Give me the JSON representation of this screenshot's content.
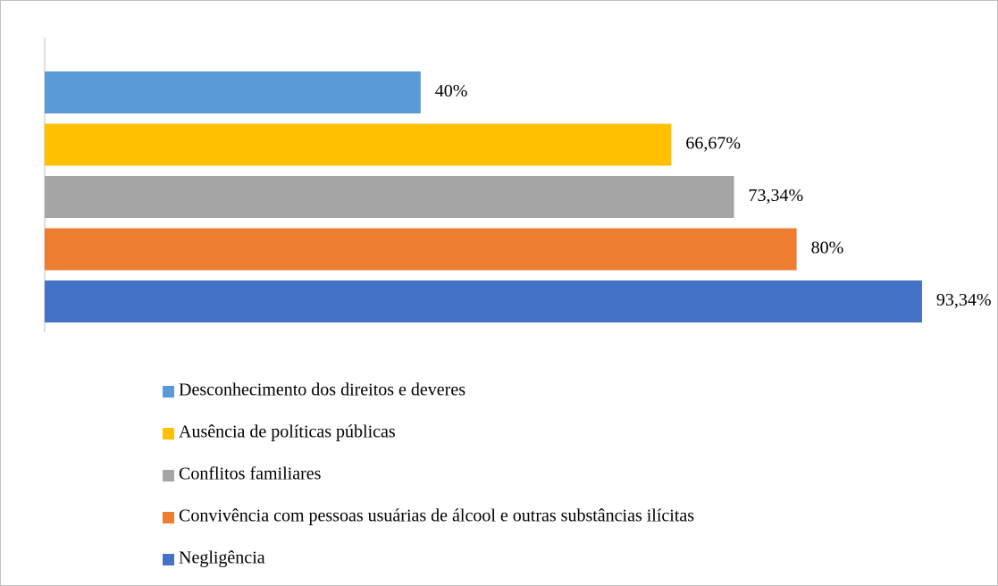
{
  "chart_data": {
    "type": "bar",
    "orientation": "horizontal",
    "series": [
      {
        "name": "Desconhecimento dos direitos e deveres",
        "color": "#5b9bd5",
        "values": [
          40
        ],
        "value_labels": [
          "40%"
        ]
      },
      {
        "name": "Ausência de políticas públicas",
        "color": "#ffc000",
        "values": [
          66.67
        ],
        "value_labels": [
          "66,67%"
        ]
      },
      {
        "name": "Conflitos familiares",
        "color": "#a5a5a5",
        "values": [
          73.34
        ],
        "value_labels": [
          "73,34%"
        ]
      },
      {
        "name": "Convivência com pessoas usuárias de álcool e outras substâncias ilícitas",
        "color": "#ed7d31",
        "values": [
          80
        ],
        "value_labels": [
          "80%"
        ]
      },
      {
        "name": "Negligência",
        "color": "#4472c4",
        "values": [
          93.34
        ],
        "value_labels": [
          "93,34%"
        ]
      }
    ],
    "xlim": [
      0,
      100
    ],
    "legend": "bottom"
  }
}
